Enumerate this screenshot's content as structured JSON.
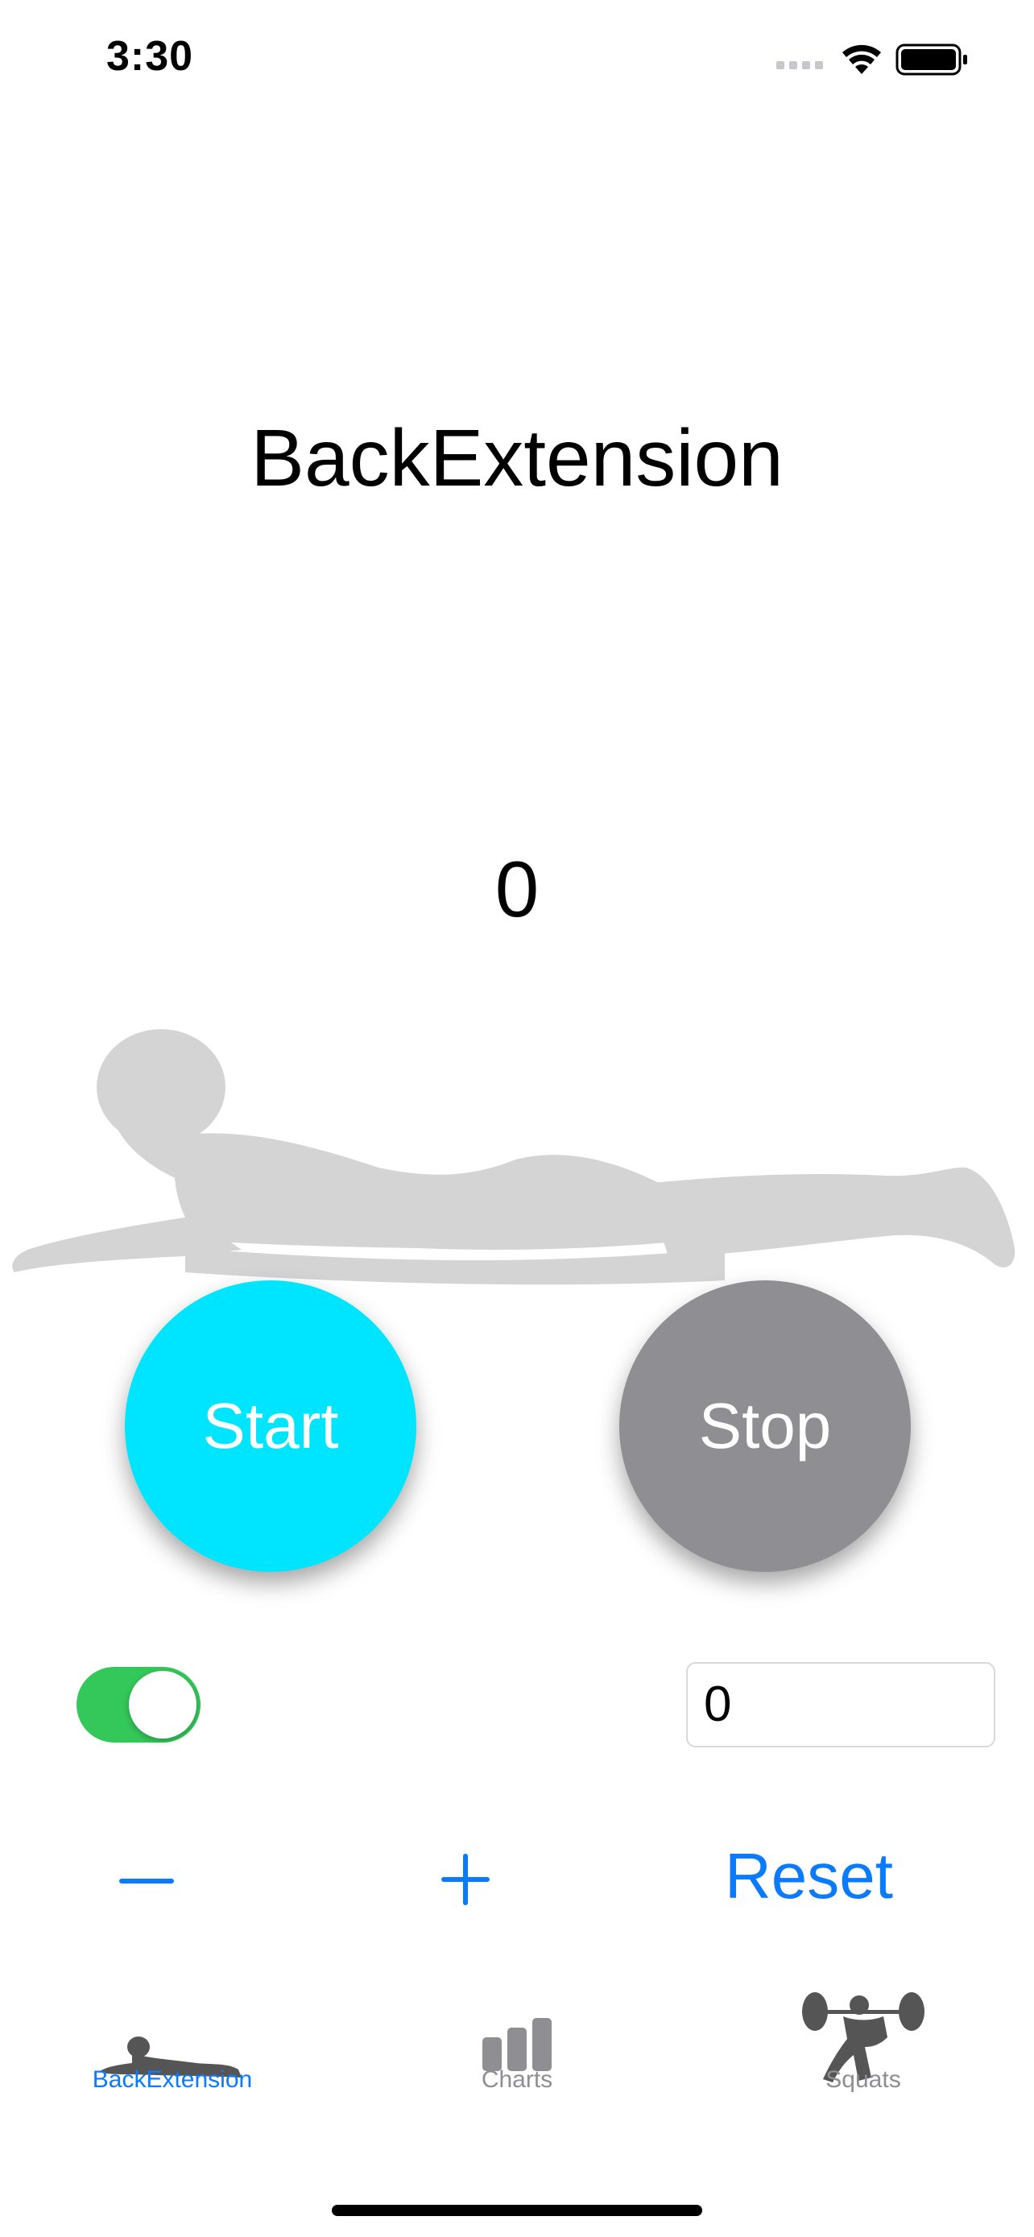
{
  "status_bar": {
    "time": "3:30"
  },
  "main": {
    "title": "BackExtension",
    "counter": "0",
    "start_label": "Start",
    "stop_label": "Stop",
    "toggle_on": true,
    "field_value": "0",
    "reset_label": "Reset"
  },
  "tabs": [
    {
      "label": "BackExtension",
      "icon": "back-extension-icon",
      "active": true
    },
    {
      "label": "Charts",
      "icon": "bar-chart-icon",
      "active": false
    },
    {
      "label": "Squats",
      "icon": "squats-icon",
      "active": false
    }
  ],
  "colors": {
    "start": "#00e5ff",
    "stop": "#8e8e93",
    "accent": "#0a7aff",
    "toggle": "#34c759"
  }
}
